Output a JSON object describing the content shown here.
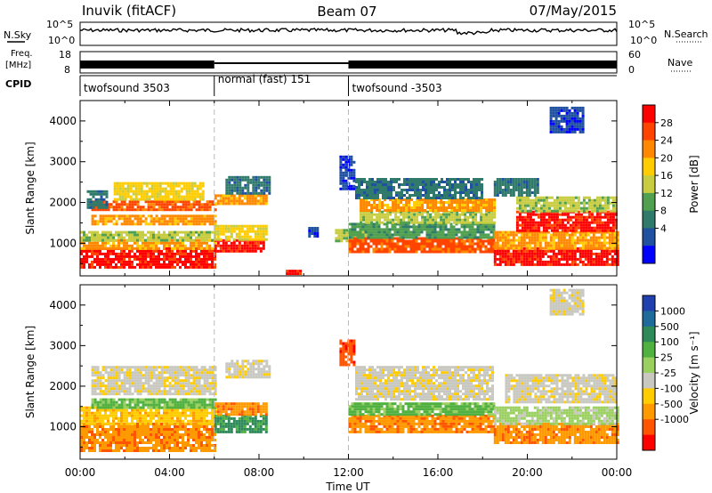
{
  "header": {
    "station": "Inuvik (fitACF)",
    "beam": "Beam 07",
    "date": "07/May/2015"
  },
  "strips": {
    "nsky_label": "N.Sky",
    "nsky_ticks": [
      "10^5",
      "10^0"
    ],
    "nsearch_label": "N.Search",
    "freq_label_line1": "Freq.",
    "freq_label_line2": "[MHz]",
    "freq_ticks": [
      "18",
      "8"
    ],
    "nave_label": "Nave",
    "nave_ticks": [
      "60",
      "0"
    ],
    "cpid_label": "CPID",
    "cpid_segments": [
      {
        "label": "twofsound 3503",
        "start_h": 0,
        "end_h": 6
      },
      {
        "label": "normal (fast) 151",
        "start_h": 6,
        "end_h": 12
      },
      {
        "label": "twofsound -3503",
        "start_h": 12,
        "end_h": 24
      }
    ]
  },
  "chart_data": [
    {
      "type": "heatmap",
      "panel": "power",
      "xlabel": "",
      "ylabel": "Slant Range [km]",
      "xlim": [
        0,
        24
      ],
      "ylim": [
        200,
        4500
      ],
      "yticks": [
        1000,
        2000,
        3000,
        4000
      ],
      "ytick_labels": [
        "1000",
        "2000",
        "3000",
        "4000"
      ],
      "colorbar": {
        "label": "Power [dB]",
        "ticks": [
          "28",
          "24",
          "20",
          "16",
          "12",
          "8",
          "4"
        ],
        "colors": [
          "#ff0000",
          "#ff4400",
          "#ff8800",
          "#ffcc00",
          "#c8cc40",
          "#50a050",
          "#2f7a6a",
          "#2050a0",
          "#0000ff"
        ]
      },
      "regions": [
        {
          "x0": 0,
          "x1": 6,
          "y0": 400,
          "y1": 900,
          "level": 0
        },
        {
          "x0": 0,
          "x1": 6,
          "y0": 900,
          "y1": 1100,
          "level": 2
        },
        {
          "x0": 0,
          "x1": 6,
          "y0": 1100,
          "y1": 1300,
          "level": 4
        },
        {
          "x0": 0.5,
          "x1": 6,
          "y0": 1450,
          "y1": 1700,
          "level": 2
        },
        {
          "x0": 0.5,
          "x1": 6,
          "y0": 1800,
          "y1": 2050,
          "level": 1
        },
        {
          "x0": 1.5,
          "x1": 5.5,
          "y0": 2050,
          "y1": 2500,
          "level": 3
        },
        {
          "x0": 0.3,
          "x1": 1.2,
          "y0": 1900,
          "y1": 2300,
          "level": 6
        },
        {
          "x0": 6,
          "x1": 8.2,
          "y0": 800,
          "y1": 1100,
          "level": 0
        },
        {
          "x0": 6,
          "x1": 8.3,
          "y0": 1100,
          "y1": 1450,
          "level": 3
        },
        {
          "x0": 6,
          "x1": 8.3,
          "y0": 1950,
          "y1": 2200,
          "level": 2
        },
        {
          "x0": 6.5,
          "x1": 8.5,
          "y0": 2200,
          "y1": 2650,
          "level": 6
        },
        {
          "x0": 9.2,
          "x1": 9.8,
          "y0": 250,
          "y1": 350,
          "level": 0
        },
        {
          "x0": 10.2,
          "x1": 10.6,
          "y0": 1150,
          "y1": 1400,
          "level": 7
        },
        {
          "x0": 11.4,
          "x1": 12.8,
          "y0": 1050,
          "y1": 1350,
          "level": 4
        },
        {
          "x0": 11.6,
          "x1": 12.3,
          "y0": 2300,
          "y1": 3150,
          "level": 7
        },
        {
          "x0": 12,
          "x1": 18.5,
          "y0": 800,
          "y1": 1150,
          "level": 1
        },
        {
          "x0": 12,
          "x1": 18.5,
          "y0": 1150,
          "y1": 1500,
          "level": 5
        },
        {
          "x0": 12.5,
          "x1": 18.5,
          "y0": 1500,
          "y1": 1800,
          "level": 4
        },
        {
          "x0": 12.5,
          "x1": 18.5,
          "y0": 1800,
          "y1": 2100,
          "level": 2
        },
        {
          "x0": 12.3,
          "x1": 18,
          "y0": 2100,
          "y1": 2600,
          "level": 6
        },
        {
          "x0": 18.5,
          "x1": 24,
          "y0": 500,
          "y1": 900,
          "level": 0
        },
        {
          "x0": 18.5,
          "x1": 24,
          "y0": 900,
          "y1": 1300,
          "level": 2
        },
        {
          "x0": 19.5,
          "x1": 24,
          "y0": 1300,
          "y1": 1800,
          "level": 0
        },
        {
          "x0": 19.5,
          "x1": 24,
          "y0": 1800,
          "y1": 2150,
          "level": 4
        },
        {
          "x0": 18.5,
          "x1": 20.5,
          "y0": 2150,
          "y1": 2600,
          "level": 6
        },
        {
          "x0": 21,
          "x1": 22.5,
          "y0": 3700,
          "y1": 4350,
          "level": 7
        }
      ]
    },
    {
      "type": "heatmap",
      "panel": "velocity",
      "xlabel": "Time UT",
      "ylabel": "Slant Range [km]",
      "xlim": [
        0,
        24
      ],
      "ylim": [
        200,
        4500
      ],
      "xticks": [
        0,
        4,
        8,
        12,
        16,
        20,
        24
      ],
      "xtick_labels": [
        "00:00",
        "04:00",
        "08:00",
        "12:00",
        "16:00",
        "20:00",
        "00:00"
      ],
      "yticks": [
        1000,
        2000,
        3000,
        4000
      ],
      "ytick_labels": [
        "1000",
        "2000",
        "3000",
        "4000"
      ],
      "colorbar": {
        "label": "Velocity [m s⁻¹]",
        "ticks": [
          "1000",
          "500",
          "100",
          "25",
          "-25",
          "-100",
          "-500",
          "-1000"
        ],
        "colors": [
          "#2040b0",
          "#1e6a9a",
          "#2f8a5a",
          "#50b040",
          "#9ad060",
          "#c8c8c0",
          "#ffcc00",
          "#ff9900",
          "#ff5500",
          "#ff0000"
        ]
      },
      "regions": [
        {
          "x0": 0,
          "x1": 6,
          "y0": 400,
          "y1": 1100,
          "level": 7
        },
        {
          "x0": 0,
          "x1": 6,
          "y0": 1100,
          "y1": 1500,
          "level": 6
        },
        {
          "x0": 0.5,
          "x1": 6,
          "y0": 1500,
          "y1": 1700,
          "level": 3
        },
        {
          "x0": 0.5,
          "x1": 6,
          "y0": 1800,
          "y1": 2500,
          "level": 5
        },
        {
          "x0": 6,
          "x1": 8.3,
          "y0": 900,
          "y1": 1300,
          "level": 2
        },
        {
          "x0": 6,
          "x1": 8.3,
          "y0": 1300,
          "y1": 1600,
          "level": 7
        },
        {
          "x0": 6.5,
          "x1": 8.5,
          "y0": 2200,
          "y1": 2650,
          "level": 5
        },
        {
          "x0": 11.6,
          "x1": 12.3,
          "y0": 2500,
          "y1": 3150,
          "level": 8
        },
        {
          "x0": 12,
          "x1": 18.5,
          "y0": 900,
          "y1": 1300,
          "level": 7
        },
        {
          "x0": 12,
          "x1": 18.5,
          "y0": 1300,
          "y1": 1600,
          "level": 3
        },
        {
          "x0": 12.3,
          "x1": 18.5,
          "y0": 1700,
          "y1": 2500,
          "level": 5
        },
        {
          "x0": 18.5,
          "x1": 24,
          "y0": 600,
          "y1": 1100,
          "level": 7
        },
        {
          "x0": 18.5,
          "x1": 24,
          "y0": 1100,
          "y1": 1500,
          "level": 4
        },
        {
          "x0": 19,
          "x1": 24,
          "y0": 1600,
          "y1": 2300,
          "level": 5
        },
        {
          "x0": 21,
          "x1": 22.5,
          "y0": 3800,
          "y1": 4400,
          "level": 5
        }
      ]
    }
  ]
}
